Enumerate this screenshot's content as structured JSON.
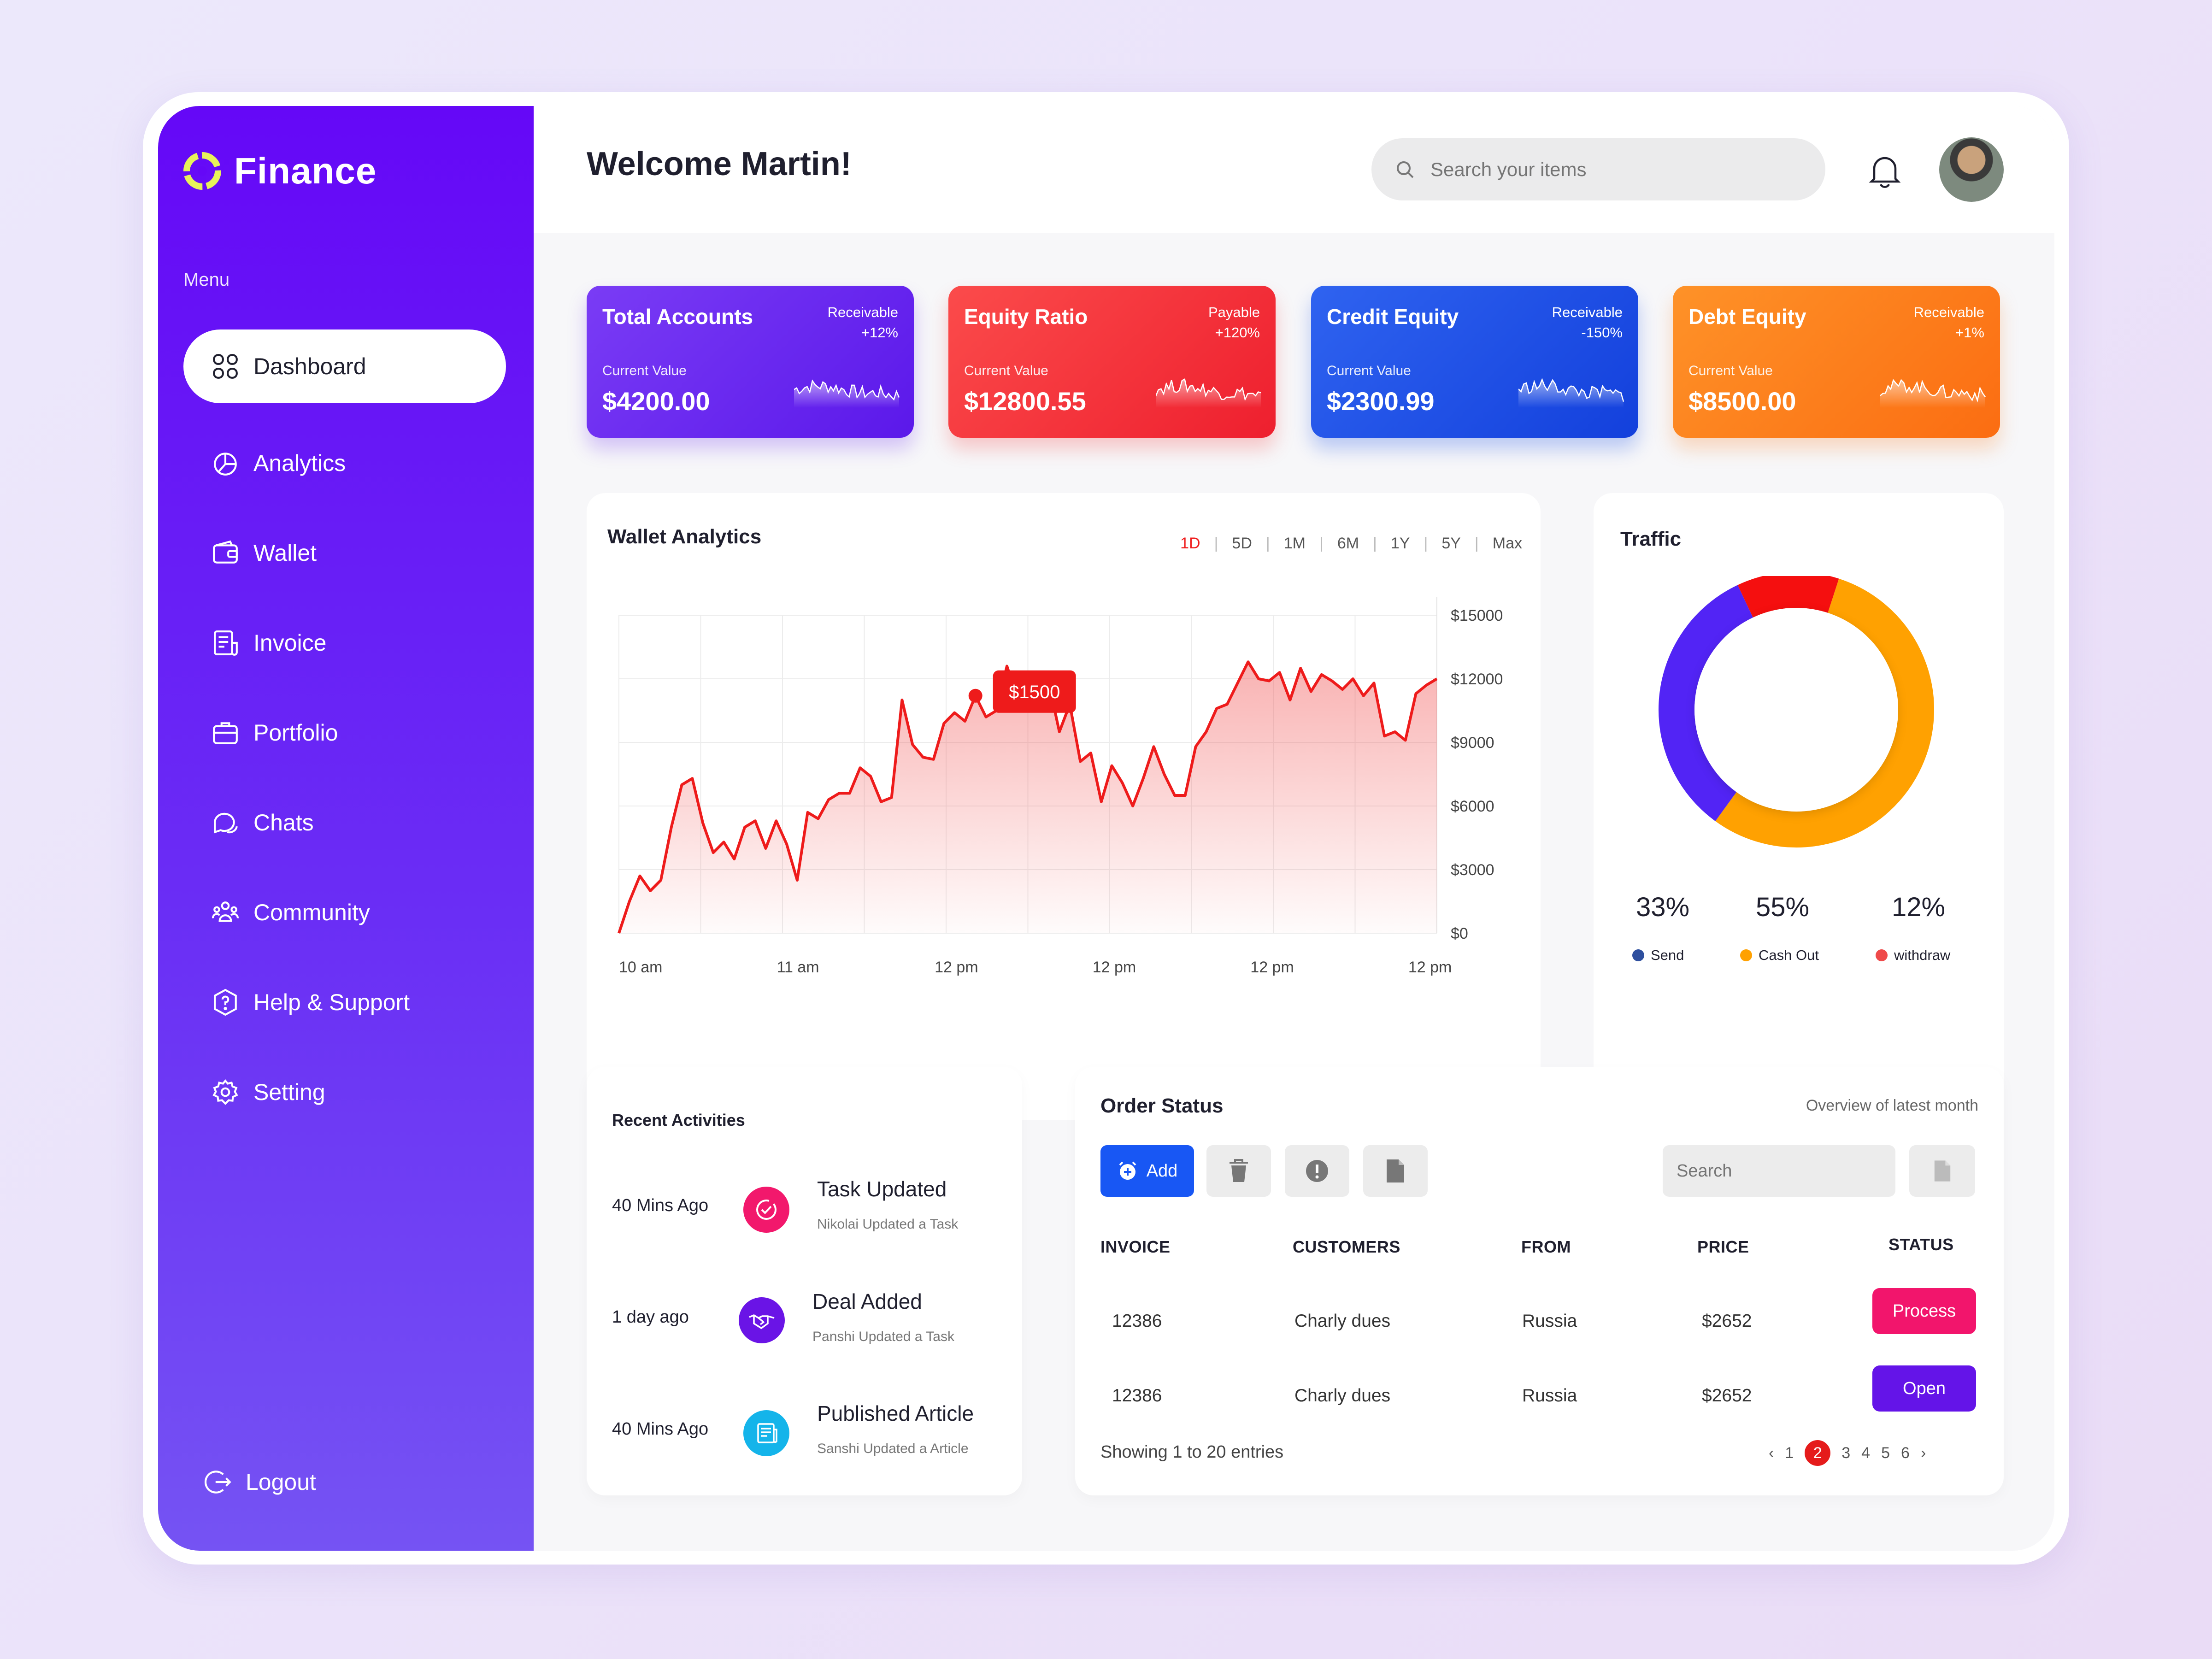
{
  "app": {
    "name": "Finance"
  },
  "sidebar": {
    "menu_label": "Menu",
    "items": [
      {
        "label": "Dashboard",
        "icon": "dashboard-icon",
        "active": true
      },
      {
        "label": "Analytics",
        "icon": "analytics-icon"
      },
      {
        "label": "Wallet",
        "icon": "wallet-icon"
      },
      {
        "label": "Invoice",
        "icon": "invoice-icon"
      },
      {
        "label": "Portfolio",
        "icon": "portfolio-icon"
      },
      {
        "label": "Chats",
        "icon": "chat-icon"
      },
      {
        "label": "Community",
        "icon": "community-icon"
      },
      {
        "label": "Help & Support",
        "icon": "help-icon"
      },
      {
        "label": "Setting",
        "icon": "gear-icon"
      }
    ],
    "logout": "Logout"
  },
  "header": {
    "welcome": "Welcome Martin!",
    "search_placeholder": "Search your items"
  },
  "cards": [
    {
      "title": "Total Accounts",
      "badge_label": "Receivable",
      "badge_change": "+12%",
      "current_label": "Current Value",
      "value": "$4200.00",
      "color": "#6a2cf0"
    },
    {
      "title": "Equity Ratio",
      "badge_label": "Payable",
      "badge_change": "+120%",
      "current_label": "Current Value",
      "value": "$12800.55",
      "color": "#f23a3a"
    },
    {
      "title": "Credit Equity",
      "badge_label": "Receivable",
      "badge_change": "-150%",
      "current_label": "Current Value",
      "value": "$2300.99",
      "color": "#1b53e6"
    },
    {
      "title": "Debt Equity",
      "badge_label": "Receivable",
      "badge_change": "+1%",
      "current_label": "Current Value",
      "value": "$8500.00",
      "color": "#fb7d1c"
    }
  ],
  "wallet": {
    "title": "Wallet Analytics",
    "ranges": [
      "1D",
      "5D",
      "1M",
      "6M",
      "1Y",
      "5Y",
      "Max"
    ],
    "active_range": "1D",
    "tooltip": "$1500"
  },
  "chart_data": {
    "type": "area",
    "title": "Wallet Analytics",
    "y_ticks": [
      "$15000",
      "$12000",
      "$9000",
      "$6000",
      "$3000",
      "$0"
    ],
    "x_ticks": [
      "10 am",
      "11 am",
      "12 pm",
      "12 pm",
      "12 pm",
      "12 pm"
    ],
    "ylim": [
      0,
      15000
    ],
    "grid": true,
    "line_color": "#ee1b1b",
    "series": [
      {
        "values": [
          0,
          1500,
          2700,
          2000,
          2500,
          5000,
          7000,
          7300,
          5200,
          3800,
          4300,
          3500,
          5000,
          5300,
          4000,
          5300,
          4200,
          2500,
          5700,
          5400,
          6300,
          6600,
          6600,
          7800,
          7400,
          6200,
          6400,
          11000,
          8900,
          8300,
          8200,
          9900,
          10400,
          10000,
          11200,
          10200,
          10500,
          12600,
          11100,
          11000,
          12000,
          11800,
          9500,
          10800,
          8100,
          8500,
          6200,
          7900,
          7100,
          6000,
          7300,
          8800,
          7500,
          6500,
          6500,
          8800,
          9500,
          10600,
          10800,
          11800,
          12800,
          12000,
          11900,
          12300,
          11000,
          12500,
          11400,
          12200,
          11900,
          11500,
          12000,
          11200,
          11800,
          9300,
          9500,
          9100,
          11300,
          11700,
          12000
        ]
      }
    ]
  },
  "traffic": {
    "title": "Traffic",
    "segments": [
      {
        "label": "Send",
        "percent": "33%",
        "value": 33,
        "color": "#5224f5",
        "dot_color": "#2e4f9e"
      },
      {
        "label": "Cash Out",
        "percent": "55%",
        "value": 55,
        "color": "#ffa101",
        "dot_color": "#ffa101"
      },
      {
        "label": "withdraw",
        "percent": "12%",
        "value": 12,
        "color": "#f50f0f",
        "dot_color": "#ef4a4a"
      }
    ]
  },
  "activities": {
    "title": "Recent Activities",
    "items": [
      {
        "time": "40 Mins Ago",
        "title": "Task Updated",
        "sub": "Nikolai Updated a Task",
        "color": "#f2186c",
        "icon": "check-circle-icon"
      },
      {
        "time": "1 day ago",
        "title": "Deal Added",
        "sub": "Panshi Updated a Task",
        "color": "#6a14e6",
        "icon": "handshake-icon"
      },
      {
        "time": "40 Mins Ago",
        "title": "Published Article",
        "sub": "Sanshi Updated a Article",
        "color": "#14b4ea",
        "icon": "article-icon"
      }
    ]
  },
  "orders": {
    "title": "Order Status",
    "subtitle": "Overview of latest month",
    "add_label": "Add",
    "search_placeholder": "Search",
    "columns": [
      "INVOICE",
      "CUSTOMERS",
      "FROM",
      "PRICE",
      "STATUS"
    ],
    "rows": [
      {
        "invoice": "12386",
        "customer": "Charly dues",
        "from": "Russia",
        "price": "$2652",
        "status": "Process",
        "status_color": "#f2156c"
      },
      {
        "invoice": "12386",
        "customer": "Charly dues",
        "from": "Russia",
        "price": "$2652",
        "status": "Open",
        "status_color": "#6414e8"
      }
    ],
    "showing": "Showing 1 to 20 entries",
    "pages": [
      "1",
      "2",
      "3",
      "4",
      "5",
      "6"
    ],
    "current_page": "2"
  }
}
